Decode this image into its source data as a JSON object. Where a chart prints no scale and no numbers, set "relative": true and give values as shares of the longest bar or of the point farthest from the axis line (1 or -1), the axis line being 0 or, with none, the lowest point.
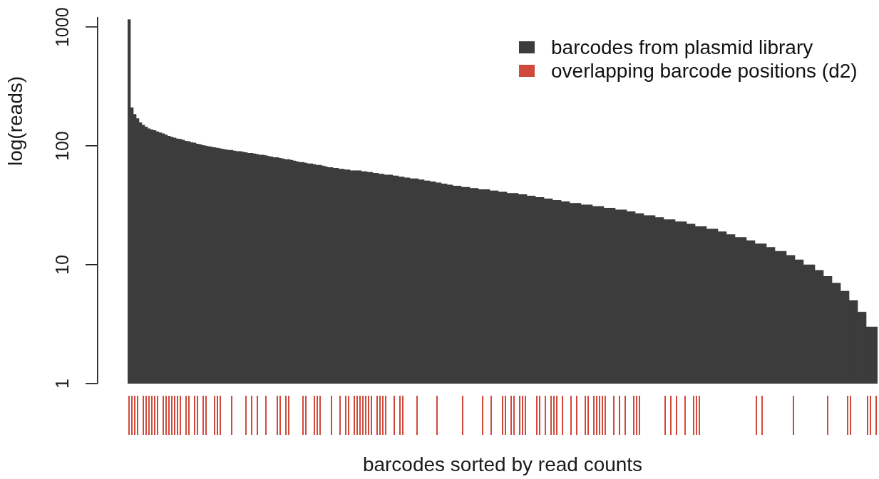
{
  "chart_data": [
    {
      "type": "bar",
      "ylabel": "log(reads)",
      "categories": [
        null,
        null,
        null,
        null,
        null,
        null,
        null,
        null,
        null,
        null,
        null,
        null,
        null,
        null,
        null,
        null,
        null,
        null,
        null,
        null,
        null,
        null,
        null,
        null,
        null,
        null,
        null,
        null,
        null,
        null,
        null,
        null,
        null,
        null,
        null,
        null,
        null,
        null,
        null,
        null,
        null,
        null,
        null,
        null,
        null,
        null,
        null,
        null,
        null,
        null,
        null,
        null,
        null,
        null,
        null,
        null,
        null,
        null,
        null,
        null,
        null,
        null,
        null,
        null,
        null,
        null,
        null,
        null,
        null,
        null,
        null,
        null,
        null,
        null,
        null,
        null,
        null,
        null,
        null,
        null,
        null,
        null,
        null,
        null,
        null,
        null,
        null,
        null,
        null,
        null,
        null,
        null,
        null,
        null,
        null,
        null,
        null,
        null,
        null,
        null,
        null,
        null,
        null,
        null,
        null,
        null,
        null,
        null,
        null,
        null,
        null,
        null,
        null,
        null,
        null,
        null,
        null,
        null,
        null,
        null,
        null,
        null,
        null,
        null,
        null,
        null,
        null,
        null,
        null,
        null,
        null,
        null,
        null,
        null,
        null,
        null,
        null,
        null,
        null,
        null,
        null,
        null,
        null,
        null,
        null,
        null,
        null,
        null,
        null,
        null,
        null,
        null,
        null,
        null,
        null,
        null,
        null,
        null,
        null,
        null,
        null,
        null,
        null,
        null,
        null,
        null,
        null,
        null,
        null,
        null,
        null,
        null,
        null,
        null,
        null,
        null,
        null,
        null,
        null,
        null,
        null,
        null,
        null,
        null,
        null,
        null,
        null,
        null,
        null,
        null,
        null,
        null,
        null,
        null,
        null,
        null,
        null,
        null,
        null,
        null,
        null,
        null,
        null,
        null,
        null,
        null,
        null,
        null,
        null,
        null,
        null,
        null,
        null,
        null,
        null,
        null,
        null,
        null,
        null,
        null,
        null,
        null,
        null,
        null,
        null,
        null,
        null,
        null,
        null,
        null,
        null,
        null,
        null,
        null,
        null,
        null,
        null,
        null,
        null,
        null,
        null,
        null,
        null,
        null,
        null,
        null,
        null,
        null,
        null,
        null,
        null,
        null,
        null,
        null,
        null,
        null,
        null,
        null,
        null,
        null,
        null,
        null,
        null
      ],
      "series": [
        {
          "name": "barcodes from plasmid library",
          "color": "#3c3c3c",
          "values": [
            1160,
            210,
            185,
            170,
            157,
            150,
            145,
            140,
            137,
            135,
            132,
            129,
            127,
            124,
            121,
            119,
            117,
            115,
            114,
            112,
            110,
            109,
            107,
            106,
            104,
            103,
            101,
            100,
            99,
            98,
            97,
            96,
            95,
            94,
            93,
            92,
            92,
            91,
            90,
            90,
            89,
            88,
            87,
            87,
            86,
            85,
            84,
            84,
            83,
            82,
            81,
            80,
            80,
            79,
            78,
            77,
            77,
            76,
            75,
            74,
            73,
            73,
            72,
            71,
            71,
            70,
            69,
            69,
            68,
            67,
            66,
            66,
            65,
            65,
            64,
            64,
            63,
            63,
            62,
            62,
            62,
            62,
            61,
            61,
            60,
            60,
            59,
            59,
            58,
            58,
            57,
            57,
            57,
            56,
            56,
            55,
            55,
            54,
            54,
            53,
            53,
            53,
            52,
            52,
            51,
            51,
            50,
            50,
            49,
            49,
            48,
            48,
            47,
            47,
            46,
            46,
            46,
            45,
            45,
            45,
            44,
            44,
            44,
            43,
            43,
            43,
            43,
            42,
            42,
            42,
            41,
            41,
            41,
            40,
            40,
            40,
            40,
            39,
            39,
            39,
            38,
            38,
            38,
            37,
            37,
            37,
            36,
            36,
            36,
            35,
            35,
            35,
            34,
            34,
            34,
            33,
            33,
            33,
            33,
            32,
            32,
            32,
            32,
            31,
            31,
            31,
            31,
            30,
            30,
            30,
            30,
            29,
            29,
            29,
            29,
            28,
            28,
            28,
            27,
            27,
            27,
            26,
            26,
            26,
            26,
            25,
            25,
            25,
            24,
            24,
            24,
            24,
            23,
            23,
            23,
            23,
            22,
            22,
            22,
            21,
            21,
            21,
            21,
            20,
            20,
            20,
            20,
            19,
            19,
            19,
            18,
            18,
            18,
            17,
            17,
            17,
            17,
            16,
            16,
            16,
            15,
            15,
            15,
            15,
            14,
            14,
            14,
            13,
            13,
            13,
            13,
            12,
            12,
            12,
            11,
            11,
            11,
            10,
            10,
            10,
            10,
            9,
            9,
            9,
            8,
            8,
            8,
            7,
            7,
            7,
            6,
            6,
            6,
            5,
            5,
            5,
            4,
            4,
            4,
            3,
            3,
            3,
            3
          ]
        }
      ],
      "log": true,
      "ylim": [
        1,
        1200
      ],
      "yticks": [
        1,
        10,
        100,
        1000
      ],
      "tick_labels": "y",
      "legend": "top right"
    },
    {
      "type": "bar",
      "relative": true,
      "xlabel": "barcodes sorted by read counts",
      "categories": [
        null,
        null,
        null,
        null,
        null,
        null,
        null,
        null,
        null,
        null,
        null,
        null,
        null,
        null,
        null,
        null,
        null,
        null,
        null,
        null,
        null,
        null,
        null,
        null,
        null,
        null,
        null,
        null,
        null,
        null,
        null,
        null,
        null,
        null,
        null,
        null,
        null,
        null,
        null,
        null,
        null,
        null,
        null,
        null,
        null,
        null,
        null,
        null,
        null,
        null,
        null,
        null,
        null,
        null,
        null,
        null,
        null,
        null,
        null,
        null,
        null,
        null,
        null,
        null,
        null,
        null,
        null,
        null,
        null,
        null,
        null,
        null,
        null,
        null,
        null,
        null,
        null,
        null,
        null,
        null,
        null,
        null,
        null,
        null,
        null,
        null,
        null,
        null,
        null,
        null,
        null,
        null,
        null,
        null,
        null,
        null,
        null,
        null,
        null,
        null,
        null,
        null,
        null,
        null,
        null,
        null,
        null,
        null,
        null,
        null,
        null,
        null,
        null,
        null,
        null,
        null,
        null,
        null,
        null,
        null,
        null,
        null,
        null,
        null,
        null,
        null,
        null,
        null,
        null,
        null,
        null,
        null,
        null,
        null,
        null,
        null,
        null,
        null,
        null,
        null,
        null,
        null,
        null,
        null,
        null,
        null,
        null,
        null,
        null,
        null,
        null,
        null,
        null,
        null,
        null,
        null,
        null,
        null,
        null,
        null,
        null,
        null,
        null,
        null,
        null,
        null,
        null,
        null,
        null,
        null,
        null,
        null,
        null,
        null,
        null,
        null,
        null,
        null,
        null,
        null,
        null,
        null,
        null,
        null,
        null,
        null,
        null,
        null,
        null,
        null,
        null,
        null,
        null,
        null,
        null,
        null,
        null,
        null,
        null,
        null,
        null,
        null,
        null,
        null,
        null,
        null,
        null,
        null,
        null,
        null,
        null,
        null,
        null,
        null,
        null,
        null,
        null,
        null,
        null,
        null,
        null,
        null,
        null,
        null,
        null,
        null,
        null,
        null,
        null,
        null,
        null,
        null,
        null,
        null,
        null,
        null,
        null,
        null,
        null,
        null,
        null,
        null,
        null,
        null,
        null,
        null,
        null,
        null,
        null,
        null,
        null,
        null,
        null,
        null,
        null,
        null,
        null,
        null,
        null,
        null,
        null,
        null,
        null
      ],
      "series": [
        {
          "name": "overlapping barcode positions (d2)",
          "color": "#d04a3c",
          "values": [
            1,
            1,
            1,
            1,
            null,
            1,
            1,
            1,
            1,
            1,
            1,
            null,
            1,
            1,
            1,
            1,
            1,
            1,
            1,
            null,
            1,
            1,
            null,
            1,
            1,
            null,
            1,
            1,
            null,
            null,
            1,
            1,
            1,
            null,
            null,
            null,
            1,
            null,
            null,
            null,
            null,
            1,
            null,
            1,
            null,
            1,
            null,
            null,
            1,
            null,
            null,
            null,
            1,
            1,
            null,
            1,
            1,
            null,
            null,
            null,
            null,
            1,
            1,
            null,
            null,
            1,
            1,
            1,
            null,
            null,
            null,
            1,
            null,
            null,
            1,
            null,
            1,
            1,
            null,
            1,
            1,
            1,
            1,
            1,
            1,
            1,
            null,
            1,
            1,
            1,
            1,
            null,
            null,
            1,
            null,
            1,
            1,
            null,
            null,
            null,
            null,
            1,
            null,
            null,
            null,
            null,
            null,
            null,
            1,
            null,
            null,
            null,
            null,
            null,
            null,
            null,
            null,
            1,
            null,
            null,
            null,
            null,
            null,
            null,
            1,
            null,
            null,
            1,
            null,
            null,
            null,
            1,
            1,
            null,
            1,
            1,
            null,
            1,
            1,
            1,
            null,
            null,
            null,
            1,
            1,
            null,
            1,
            null,
            1,
            1,
            1,
            null,
            1,
            null,
            null,
            1,
            null,
            1,
            null,
            null,
            1,
            1,
            null,
            1,
            1,
            1,
            1,
            1,
            null,
            null,
            1,
            null,
            1,
            null,
            1,
            null,
            null,
            1,
            1,
            1,
            null,
            null,
            null,
            null,
            null,
            null,
            null,
            null,
            1,
            null,
            1,
            null,
            1,
            null,
            null,
            1,
            null,
            null,
            1,
            1,
            1,
            null,
            null,
            null,
            null,
            null,
            null,
            null,
            null,
            null,
            null,
            null,
            null,
            null,
            null,
            null,
            null,
            null,
            null,
            null,
            1,
            null,
            1,
            null,
            null,
            null,
            null,
            null,
            null,
            null,
            null,
            null,
            null,
            1,
            null,
            null,
            null,
            null,
            null,
            null,
            null,
            null,
            null,
            null,
            null,
            1,
            null,
            null,
            null,
            null,
            null,
            null,
            1,
            1,
            null,
            null,
            null,
            null,
            null,
            1,
            1,
            null,
            1
          ]
        }
      ],
      "tick_labels": false,
      "legend": "top right"
    }
  ]
}
